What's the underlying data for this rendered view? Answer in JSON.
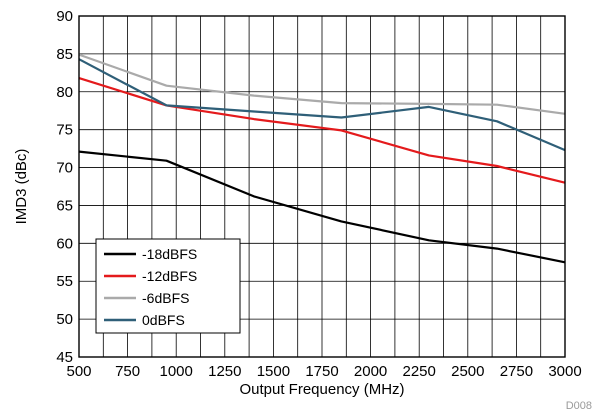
{
  "chart_data": {
    "type": "line",
    "title": "",
    "xlabel": "Output Frequency (MHz)",
    "ylabel": "IMD3 (dBc)",
    "xlim": [
      500,
      3000
    ],
    "ylim": [
      45,
      90
    ],
    "xticks": [
      500,
      750,
      1000,
      1250,
      1500,
      1750,
      2000,
      2250,
      2500,
      2750,
      3000
    ],
    "yticks": [
      45,
      50,
      55,
      60,
      65,
      70,
      75,
      80,
      85,
      90
    ],
    "x_grid_step": 125,
    "grid": true,
    "legend_position": "bottom-left",
    "series": [
      {
        "name": "-18dBFS",
        "color": "#000000",
        "x": [
          500,
          950,
          1400,
          1850,
          2300,
          2650,
          3000
        ],
        "y": [
          72.1,
          70.9,
          66.2,
          62.9,
          60.4,
          59.3,
          57.5
        ]
      },
      {
        "name": "-12dBFS",
        "color": "#e41a1c",
        "x": [
          500,
          950,
          1400,
          1850,
          2300,
          2650,
          3000
        ],
        "y": [
          81.8,
          78.2,
          76.4,
          74.9,
          71.6,
          70.2,
          68.0
        ]
      },
      {
        "name": "-6dBFS",
        "color": "#aaaaaa",
        "x": [
          500,
          950,
          1400,
          1850,
          2300,
          2650,
          3000
        ],
        "y": [
          84.9,
          80.8,
          79.5,
          78.5,
          78.4,
          78.3,
          77.1
        ]
      },
      {
        "name": "0dBFS",
        "color": "#2f5f78",
        "x": [
          500,
          950,
          1400,
          1850,
          2300,
          2650,
          3000
        ],
        "y": [
          84.3,
          78.2,
          77.4,
          76.6,
          78.0,
          76.1,
          72.3
        ]
      }
    ]
  },
  "figure_id": "D008"
}
